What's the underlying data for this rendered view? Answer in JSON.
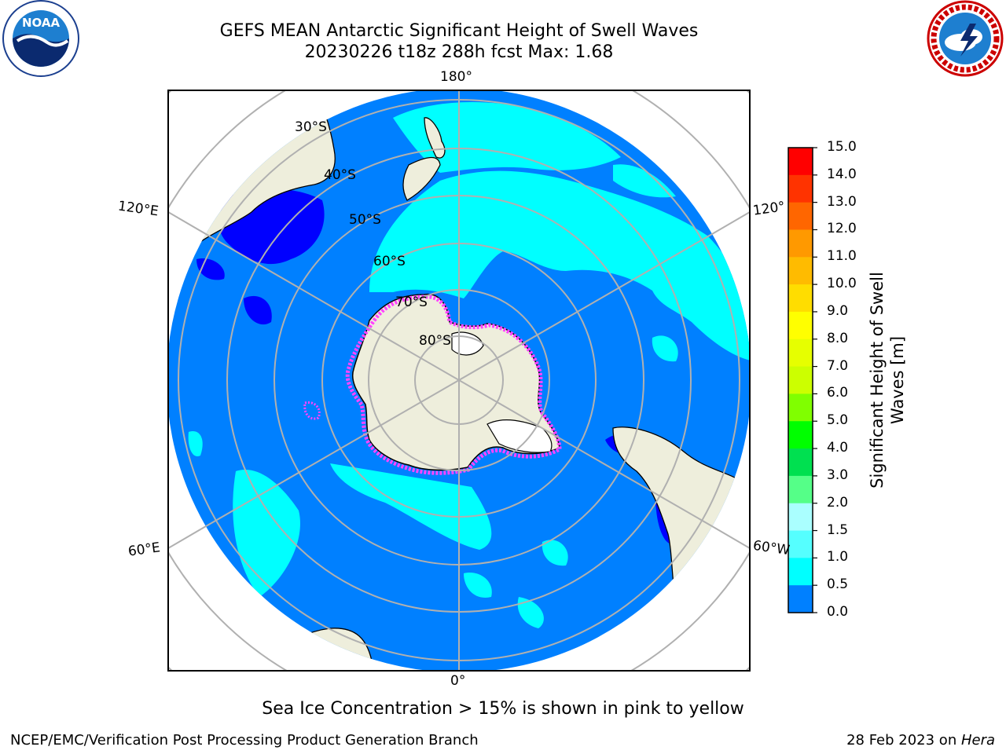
{
  "header": {
    "title_line1": "GEFS MEAN Antarctic Significant Height of Swell Waves",
    "title_line2": "20230226 t18z 288h fcst   Max: 1.68"
  },
  "logos": {
    "left": {
      "text": "NOAA",
      "ring_text": "NATIONAL OCEANIC AND ATMOSPHERIC ADMINISTRATION"
    },
    "right": {
      "ring_text": "NATIONAL WEATHER SERVICE"
    }
  },
  "map": {
    "longitude_labels": {
      "top": "180°",
      "left_upper": "120°E",
      "right_upper": "120°",
      "left_lower": "60°E",
      "right_lower": "60°W",
      "bottom": "0°"
    },
    "latitude_labels": [
      "30°S",
      "40°S",
      "50°S",
      "60°S",
      "70°S",
      "80°S"
    ],
    "colors": {
      "ocean_low": "#0080ff",
      "ocean_mid": "#00ffff",
      "ocean_shallow": "#0000ff",
      "land": "#eeeedc",
      "ice": "#ff00ff",
      "grid": "#b0b0b0"
    }
  },
  "colorbar": {
    "label": "Significant Height of Swell Waves [m]",
    "ticks": [
      "15.0",
      "14.0",
      "13.0",
      "12.0",
      "11.0",
      "10.0",
      "9.0",
      "8.0",
      "7.0",
      "6.0",
      "5.0",
      "4.0",
      "3.0",
      "2.0",
      "1.5",
      "1.0",
      "0.5",
      "0.0"
    ],
    "colors": [
      "#ff0000",
      "#ff3300",
      "#ff6600",
      "#ff9900",
      "#ffbb00",
      "#ffdd00",
      "#ffff00",
      "#e6ff00",
      "#ccff00",
      "#80ff00",
      "#00ff00",
      "#00e050",
      "#55ff88",
      "#aaffff",
      "#55ffff",
      "#00ffff",
      "#0080ff",
      "#0000ff"
    ]
  },
  "footer": {
    "note": "Sea Ice Concentration > 15% is shown in pink to yellow",
    "credit": "NCEP/EMC/Verification Post Processing Product Generation Branch",
    "date": "28 Feb 2023 on ",
    "host": "Hera"
  }
}
